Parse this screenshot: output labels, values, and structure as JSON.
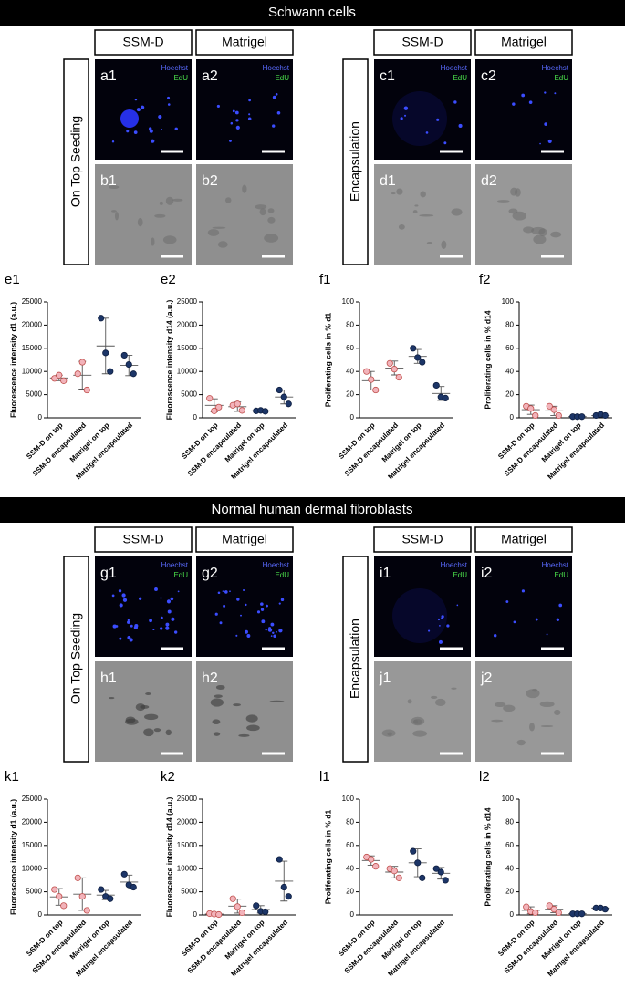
{
  "stains": [
    "Hoechst",
    "EdU"
  ],
  "sections": [
    {
      "title": "Schwann cells",
      "groups": [
        {
          "label": "On Top Seeding",
          "columns": [
            "SSM-D",
            "Matrigel"
          ],
          "panels": [
            [
              "a1",
              "a2"
            ],
            [
              "b1",
              "b2"
            ]
          ]
        },
        {
          "label": "Encapsulation",
          "columns": [
            "SSM-D",
            "Matrigel"
          ],
          "panels": [
            [
              "c1",
              "c2"
            ],
            [
              "d1",
              "d2"
            ]
          ]
        }
      ]
    },
    {
      "title": "Normal human dermal fibroblasts",
      "groups": [
        {
          "label": "On Top Seeding",
          "columns": [
            "SSM-D",
            "Matrigel"
          ],
          "panels": [
            [
              "g1",
              "g2"
            ],
            [
              "h1",
              "h2"
            ]
          ]
        },
        {
          "label": "Encapsulation",
          "columns": [
            "SSM-D",
            "Matrigel"
          ],
          "panels": [
            [
              "i1",
              "i2"
            ],
            [
              "j1",
              "j2"
            ]
          ]
        }
      ]
    }
  ],
  "chart_data": [
    {
      "type": "dot",
      "label": "e1",
      "ylabel": "Fluorescence intensity d1 (a.u.)",
      "categories": [
        "SSM-D on top",
        "SSM-D encapsulated",
        "Matrigel on top",
        "Matrigel encapsulated"
      ],
      "colors": [
        "#f2b3ba",
        "#f2b3ba",
        "#1c3567",
        "#1c3567"
      ],
      "values": [
        [
          8500,
          9200,
          8000
        ],
        [
          9500,
          12000,
          6000
        ],
        [
          21500,
          14000,
          10000
        ],
        [
          13500,
          11500,
          9500
        ]
      ],
      "means": [
        8600,
        9200,
        15500,
        11300
      ],
      "sds": [
        600,
        3000,
        6000,
        2200
      ],
      "ylim": [
        0,
        25000
      ],
      "yticks": [
        0,
        5000,
        10000,
        15000,
        20000,
        25000
      ]
    },
    {
      "type": "dot",
      "label": "e2",
      "ylabel": "Fluorescence intensity d14 (a.u.)",
      "categories": [
        "SSM-D on top",
        "SSM-D encapsulated",
        "Matrigel on top",
        "Matrigel encapsulated"
      ],
      "colors": [
        "#f2b3ba",
        "#f2b3ba",
        "#1c3567",
        "#1c3567"
      ],
      "values": [
        [
          4200,
          1500,
          2300
        ],
        [
          2700,
          3000,
          1600
        ],
        [
          1500,
          1600,
          1400
        ],
        [
          6000,
          4500,
          3000
        ]
      ],
      "means": [
        2700,
        2400,
        1500,
        4500
      ],
      "sds": [
        1400,
        1000,
        100,
        1500
      ],
      "ylim": [
        0,
        25000
      ],
      "yticks": [
        0,
        5000,
        10000,
        15000,
        20000,
        25000
      ]
    },
    {
      "type": "dot",
      "label": "f1",
      "ylabel": "Proliferating cells in % d1",
      "categories": [
        "SSM-D on top",
        "SSM-D encapsulated",
        "Matrigel on top",
        "Matrigel encapsulated"
      ],
      "colors": [
        "#f2b3ba",
        "#f2b3ba",
        "#1c3567",
        "#1c3567"
      ],
      "values": [
        [
          40,
          33,
          24
        ],
        [
          47,
          42,
          35
        ],
        [
          60,
          52,
          48
        ],
        [
          28,
          18,
          17
        ]
      ],
      "means": [
        32,
        43,
        53,
        21
      ],
      "sds": [
        8,
        6,
        6,
        6
      ],
      "ylim": [
        0,
        100
      ],
      "yticks": [
        0,
        20,
        40,
        60,
        80,
        100
      ]
    },
    {
      "type": "dot",
      "label": "f2",
      "ylabel": "Proliferating cells in % d14",
      "categories": [
        "SSM-D on top",
        "SSM-D encapsulated",
        "Matrigel on top",
        "Matrigel encapsulated"
      ],
      "colors": [
        "#f2b3ba",
        "#f2b3ba",
        "#1c3567",
        "#1c3567"
      ],
      "values": [
        [
          10,
          8,
          2
        ],
        [
          10,
          7,
          2
        ],
        [
          1,
          1,
          1
        ],
        [
          2,
          3,
          2
        ]
      ],
      "means": [
        7,
        6,
        1,
        2
      ],
      "sds": [
        4,
        4,
        0.3,
        1
      ],
      "ylim": [
        0,
        100
      ],
      "yticks": [
        0,
        20,
        40,
        60,
        80,
        100
      ]
    },
    {
      "type": "dot",
      "label": "k1",
      "ylabel": "Fluorescence intensity d1 (a.u.)",
      "categories": [
        "SSM-D on top",
        "SSM-D encapsulated",
        "Matrigel on top",
        "Matrigel encapsulated"
      ],
      "colors": [
        "#f2b3ba",
        "#f2b3ba",
        "#1c3567",
        "#1c3567"
      ],
      "values": [
        [
          5500,
          4000,
          2000
        ],
        [
          8000,
          4000,
          1000
        ],
        [
          5500,
          4000,
          3500
        ],
        [
          8800,
          6500,
          6000
        ]
      ],
      "means": [
        3900,
        4500,
        4300,
        7100
      ],
      "sds": [
        1800,
        3500,
        1000,
        1500
      ],
      "ylim": [
        0,
        25000
      ],
      "yticks": [
        0,
        5000,
        10000,
        15000,
        20000,
        25000
      ]
    },
    {
      "type": "dot",
      "label": "k2",
      "ylabel": "Fluorescence intensity d14 (a.u.)",
      "categories": [
        "SSM-D on top",
        "SSM-D encapsulated",
        "Matrigel on top",
        "Matrigel encapsulated"
      ],
      "colors": [
        "#f2b3ba",
        "#f2b3ba",
        "#1c3567",
        "#1c3567"
      ],
      "values": [
        [
          300,
          200,
          100
        ],
        [
          3500,
          1800,
          500
        ],
        [
          2000,
          800,
          700
        ],
        [
          12000,
          6000,
          4000
        ]
      ],
      "means": [
        200,
        1900,
        1200,
        7300
      ],
      "sds": [
        100,
        1500,
        800,
        4300
      ],
      "ylim": [
        0,
        25000
      ],
      "yticks": [
        0,
        5000,
        10000,
        15000,
        20000,
        25000
      ]
    },
    {
      "type": "dot",
      "label": "l1",
      "ylabel": "Proliferating cells in % d1",
      "categories": [
        "SSM-D on top",
        "SSM-D encapsulated",
        "Matrigel on top",
        "Matrigel encapsulated"
      ],
      "colors": [
        "#f2b3ba",
        "#f2b3ba",
        "#1c3567",
        "#1c3567"
      ],
      "values": [
        [
          50,
          48,
          42
        ],
        [
          40,
          38,
          32
        ],
        [
          55,
          45,
          32
        ],
        [
          40,
          37,
          30
        ]
      ],
      "means": [
        47,
        37,
        45,
        36
      ],
      "sds": [
        4,
        5,
        12,
        5
      ],
      "ylim": [
        0,
        100
      ],
      "yticks": [
        0,
        20,
        40,
        60,
        80,
        100
      ]
    },
    {
      "type": "dot",
      "label": "l2",
      "ylabel": "Proliferating cells in % d14",
      "categories": [
        "SSM-D on top",
        "SSM-D encapsulated",
        "Matrigel on top",
        "Matrigel encapsulated"
      ],
      "colors": [
        "#f2b3ba",
        "#f2b3ba",
        "#1c3567",
        "#1c3567"
      ],
      "values": [
        [
          7,
          3,
          2
        ],
        [
          8,
          5,
          2
        ],
        [
          1,
          1,
          1
        ],
        [
          6,
          6,
          5
        ]
      ],
      "means": [
        4,
        5,
        1,
        6
      ],
      "sds": [
        3,
        3,
        0.3,
        1
      ],
      "ylim": [
        0,
        100
      ],
      "yticks": [
        0,
        20,
        40,
        60,
        80,
        100
      ]
    }
  ]
}
